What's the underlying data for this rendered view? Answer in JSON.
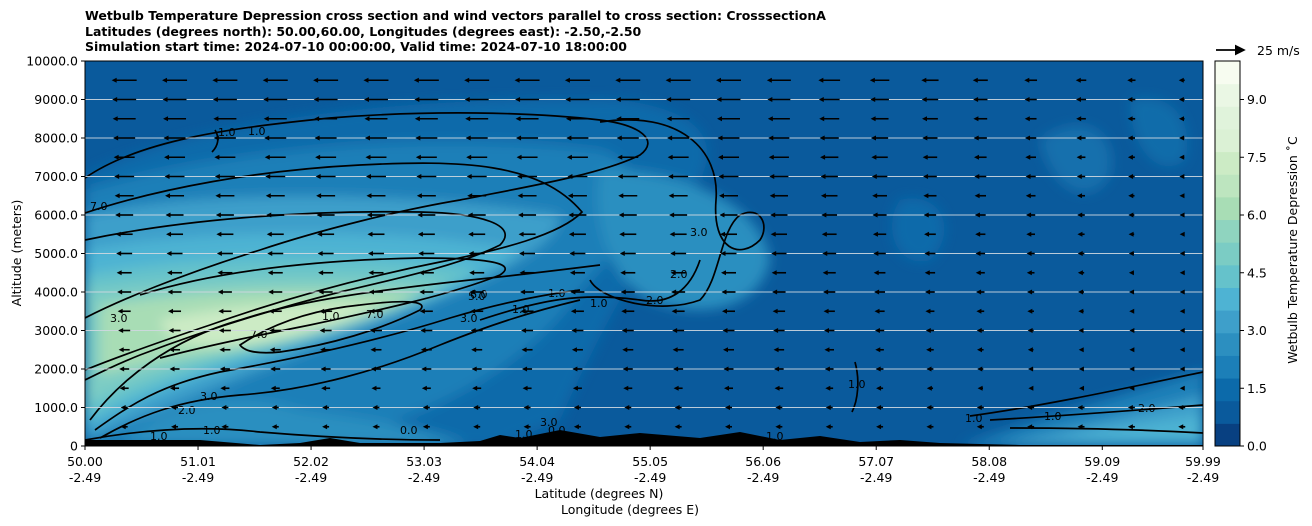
{
  "chart_data": {
    "type": "heatmap",
    "title_lines": [
      "Wetbulb Temperature Depression cross section and wind vectors parallel to cross section: CrosssectionA",
      "Latitudes (degrees north): 50.00,60.00, Longitudes (degrees east): -2.50,-2.50",
      "Simulation start time: 2024-07-10 00:00:00, Valid time: 2024-07-10 18:00:00"
    ],
    "ylabel": "Altitude (meters)",
    "xlabel": "Latitude (degrees N)",
    "xlabel2": "Longitude (degrees E)",
    "ylim": [
      0,
      10000
    ],
    "xlim": [
      50.0,
      59.99
    ],
    "y_ticks": [
      "0",
      "1000.0",
      "2000.0",
      "3000.0",
      "4000.0",
      "5000.0",
      "6000.0",
      "7000.0",
      "8000.0",
      "9000.0",
      "10000.0"
    ],
    "x_ticks": [
      {
        "lat": "50.00",
        "lon": "-2.49"
      },
      {
        "lat": "51.01",
        "lon": "-2.49"
      },
      {
        "lat": "52.02",
        "lon": "-2.49"
      },
      {
        "lat": "53.03",
        "lon": "-2.49"
      },
      {
        "lat": "54.04",
        "lon": "-2.49"
      },
      {
        "lat": "55.05",
        "lon": "-2.49"
      },
      {
        "lat": "56.06",
        "lon": "-2.49"
      },
      {
        "lat": "57.07",
        "lon": "-2.49"
      },
      {
        "lat": "58.08",
        "lon": "-2.49"
      },
      {
        "lat": "59.09",
        "lon": "-2.49"
      },
      {
        "lat": "59.99",
        "lon": "-2.49"
      }
    ],
    "grid": "horizontal",
    "colorbar": {
      "label": "Wetbulb Temperature Depression ˚C",
      "range": [
        0,
        10
      ],
      "ticks": [
        "0.0",
        "1.5",
        "3.0",
        "4.5",
        "6.0",
        "7.5",
        "9.0"
      ],
      "colors": [
        "#084081",
        "#0a5a9c",
        "#0c6aaa",
        "#1c7fb8",
        "#2c8fc0",
        "#3e9fca",
        "#4eb3d3",
        "#65c2cb",
        "#7bccc4",
        "#8fd4bf",
        "#a8ddb5",
        "#bde5bf",
        "#ccebc5",
        "#dbf1d5",
        "#e0f3db",
        "#eaf7e4",
        "#f7fcf0"
      ]
    },
    "quiver_key": {
      "label": "25 m/s",
      "value": 25
    },
    "contour_labels": [
      "1.0",
      "1.0",
      "7.0",
      "3.0",
      "5.0",
      "7.0",
      "1.0",
      "7.0",
      "3.0",
      "6.0",
      "1.0",
      "1.0",
      "1.0",
      "2.0",
      "3.0",
      "2.0",
      "1.0",
      "1.0",
      "1.0",
      "2.0",
      "3.0",
      "0.0",
      "0.0",
      "1.0",
      "2.0",
      "3.0",
      "1.0",
      "1.0",
      "1.0"
    ],
    "wind_rows_m": [
      9500,
      9000,
      8500,
      8000,
      7500,
      7000,
      6500,
      6000,
      5500,
      5000,
      4500,
      4000,
      3500,
      3000,
      2500,
      2000,
      1500,
      1000,
      500
    ],
    "wind_col_deg": [
      50.35,
      50.8,
      51.25,
      51.7,
      52.15,
      52.6,
      53.05,
      53.5,
      53.95,
      54.4,
      54.85,
      55.3,
      55.75,
      56.2,
      56.65,
      57.1,
      57.55,
      58.0,
      58.45,
      58.9,
      59.35,
      59.8
    ]
  }
}
